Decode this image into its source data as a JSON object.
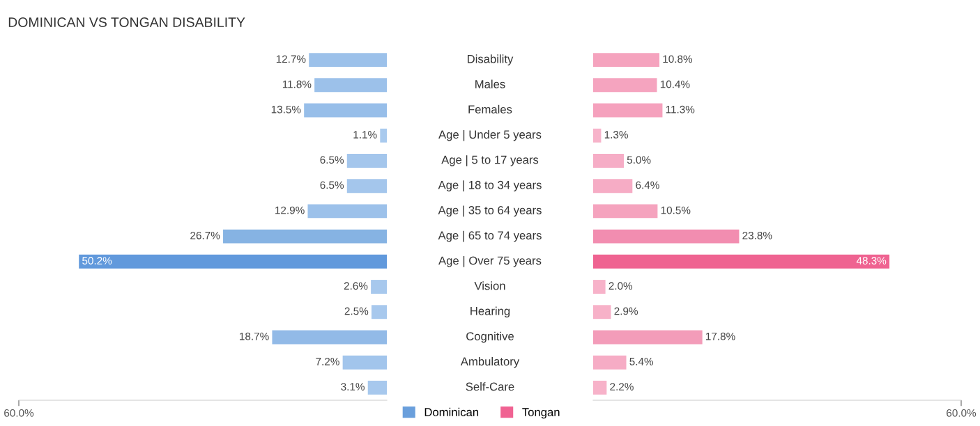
{
  "chart_data": [
    {
      "type": "bar",
      "orientation": "horizontal",
      "title": "DOMINICAN VS TONGAN DISABILITY",
      "categories": [
        "Disability",
        "Males",
        "Females",
        "Age | Under 5 years",
        "Age | 5 to 17 years",
        "Age | 18 to 34 years",
        "Age | 35 to 64 years",
        "Age | 65 to 74 years",
        "Age | Over 75 years",
        "Vision",
        "Hearing",
        "Cognitive",
        "Ambulatory",
        "Self-Care"
      ],
      "series": [
        {
          "name": "Dominican",
          "color": "#6a9fdc",
          "colors": [
            "#9cc1ea",
            "#9cc1ea",
            "#97bee9",
            "#a9caee",
            "#a4c6ec",
            "#a4c6ec",
            "#9cc1ea",
            "#86b3e3",
            "#6199dc",
            "#a7c8ed",
            "#a7c8ed",
            "#92bae7",
            "#a2c5ec",
            "#a7c8ed"
          ],
          "values": [
            12.7,
            11.8,
            13.5,
            1.1,
            6.5,
            6.5,
            12.9,
            26.7,
            50.2,
            2.6,
            2.5,
            18.7,
            7.2,
            3.1
          ],
          "value_labels": [
            "12.7%",
            "11.8%",
            "13.5%",
            "1.1%",
            "6.5%",
            "6.5%",
            "12.9%",
            "26.7%",
            "50.2%",
            "2.6%",
            "2.5%",
            "18.7%",
            "7.2%",
            "3.1%"
          ]
        }
      ],
      "xlim": [
        60,
        0
      ],
      "xticks": [
        {
          "value": 60,
          "label": "60.0%"
        }
      ],
      "legend": "bottom",
      "grid": false
    },
    {
      "type": "bar",
      "orientation": "horizontal",
      "categories": [
        null,
        null,
        null,
        null,
        null,
        null,
        null,
        null,
        null,
        null,
        null,
        null,
        null,
        null
      ],
      "series": [
        {
          "name": "Tongan",
          "color": "#f06292",
          "colors": [
            "#f5a3be",
            "#f5a4bf",
            "#f5a1bd",
            "#f7b3ca",
            "#f6adc6",
            "#f6acc5",
            "#f5a3be",
            "#f28db0",
            "#ef6391",
            "#f7b2c9",
            "#f7b1c8",
            "#f39cb9",
            "#f6acc5",
            "#f7b2c9"
          ],
          "values": [
            10.8,
            10.4,
            11.3,
            1.3,
            5.0,
            6.4,
            10.5,
            23.8,
            48.3,
            2.0,
            2.9,
            17.8,
            5.4,
            2.2
          ],
          "value_labels": [
            "10.8%",
            "10.4%",
            "11.3%",
            "1.3%",
            "5.0%",
            "6.4%",
            "10.5%",
            "23.8%",
            "48.3%",
            "2.0%",
            "2.9%",
            "17.8%",
            "5.4%",
            "2.2%"
          ]
        }
      ],
      "xlim": [
        0,
        60
      ],
      "xticks": [
        {
          "value": 60,
          "label": "60.0%"
        }
      ],
      "legend": "bottom",
      "grid": false
    }
  ]
}
